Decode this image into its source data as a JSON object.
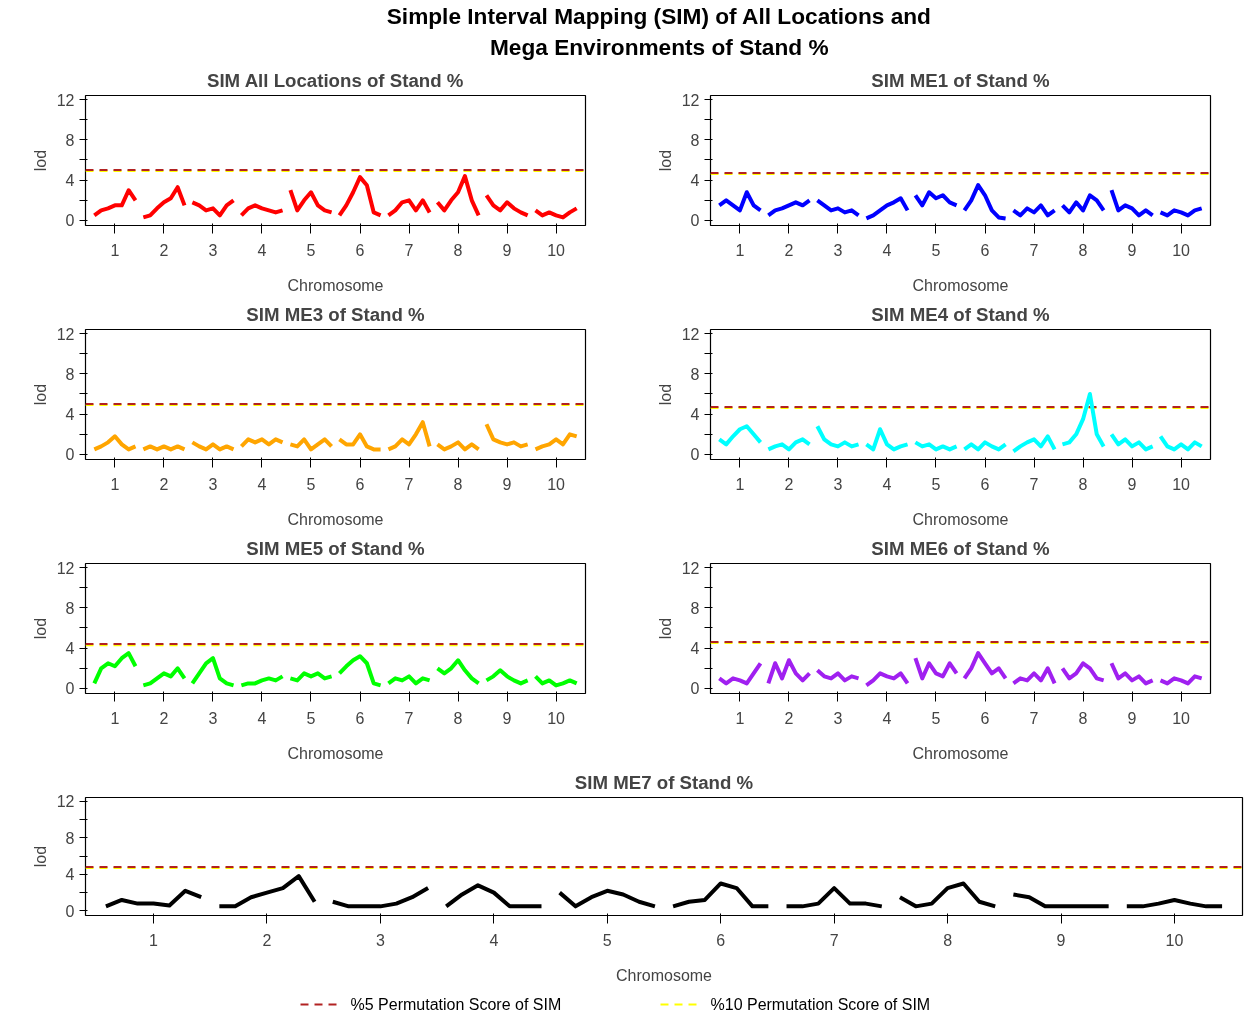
{
  "chart_data": [
    {
      "type": "other",
      "title": "Simple Interval Mapping (SIM) of All Locations and\nMega Environments of Stand %"
    },
    {
      "type": "line",
      "title": "SIM All Locations of Stand %",
      "xlabel": "Chromosome",
      "ylabel": "lod",
      "x": [
        0.58,
        0.72,
        0.86,
        1,
        1.14,
        1.28,
        1.42,
        1.5,
        1.58,
        1.72,
        1.86,
        2,
        2.14,
        2.28,
        2.42,
        2.5,
        2.58,
        2.72,
        2.86,
        3,
        3.14,
        3.28,
        3.42,
        3.5,
        3.58,
        3.72,
        3.86,
        4,
        4.14,
        4.28,
        4.42,
        4.5,
        4.58,
        4.72,
        4.86,
        5,
        5.14,
        5.28,
        5.42,
        5.5,
        5.58,
        5.72,
        5.86,
        6,
        6.14,
        6.28,
        6.42,
        6.5,
        6.58,
        6.72,
        6.86,
        7,
        7.14,
        7.28,
        7.42,
        7.5,
        7.58,
        7.72,
        7.86,
        8,
        8.14,
        8.28,
        8.42,
        8.5,
        8.58,
        8.72,
        8.86,
        9,
        9.14,
        9.28,
        9.42,
        9.5,
        9.58,
        9.72,
        9.86,
        10,
        10.14,
        10.28,
        10.42
      ],
      "series": [
        {
          "color": "#ff0000",
          "values": [
            0.5,
            1.0,
            1.2,
            1.5,
            1.5,
            3.0,
            2.0,
            null,
            0.3,
            0.5,
            1.2,
            1.8,
            2.2,
            3.3,
            1.5,
            null,
            1.8,
            1.5,
            1.0,
            1.2,
            0.5,
            1.5,
            2.0,
            null,
            0.5,
            1.2,
            1.5,
            1.2,
            1.0,
            0.8,
            1.0,
            null,
            3.0,
            1.0,
            2.0,
            2.8,
            1.5,
            1.0,
            0.8,
            null,
            0.5,
            1.5,
            2.8,
            4.3,
            3.5,
            0.8,
            0.5,
            null,
            0.5,
            1.0,
            1.8,
            2.0,
            1.0,
            2.0,
            0.8,
            null,
            1.8,
            1.0,
            2.0,
            2.8,
            4.4,
            2.0,
            0.5,
            null,
            2.5,
            1.5,
            1.0,
            1.8,
            1.2,
            0.8,
            0.5,
            null,
            1.0,
            0.5,
            0.8,
            0.5,
            0.3,
            0.8,
            1.2
          ]
        }
      ],
      "xlim": [
        0.4,
        10.6
      ],
      "ylim": [
        -0.5,
        12.4
      ],
      "xticks": [
        1,
        2,
        3,
        4,
        5,
        6,
        7,
        8,
        9,
        10
      ],
      "yticks": [
        0,
        {
          "value": 2,
          "label": null
        },
        4,
        {
          "value": 6,
          "label": null
        },
        8,
        {
          "value": 10,
          "label": null
        },
        12
      ],
      "ref_lines": [
        {
          "axis": "y",
          "value": 4.9,
          "color": "#ffff00",
          "line_style": "dashed"
        },
        {
          "axis": "y",
          "value": 5.0,
          "color": "#b22222",
          "line_style": "dashed"
        }
      ]
    },
    {
      "type": "line",
      "title": "SIM ME1 of Stand %",
      "xlabel": "Chromosome",
      "ylabel": "lod",
      "x": [
        0.58,
        0.72,
        0.86,
        1,
        1.14,
        1.28,
        1.42,
        1.5,
        1.58,
        1.72,
        1.86,
        2,
        2.14,
        2.28,
        2.42,
        2.5,
        2.58,
        2.72,
        2.86,
        3,
        3.14,
        3.28,
        3.42,
        3.5,
        3.58,
        3.72,
        3.86,
        4,
        4.14,
        4.28,
        4.42,
        4.5,
        4.58,
        4.72,
        4.86,
        5,
        5.14,
        5.28,
        5.42,
        5.5,
        5.58,
        5.72,
        5.86,
        6,
        6.14,
        6.28,
        6.42,
        6.5,
        6.58,
        6.72,
        6.86,
        7,
        7.14,
        7.28,
        7.42,
        7.5,
        7.58,
        7.72,
        7.86,
        8,
        8.14,
        8.28,
        8.42,
        8.5,
        8.58,
        8.72,
        8.86,
        9,
        9.14,
        9.28,
        9.42,
        9.5,
        9.58,
        9.72,
        9.86,
        10,
        10.14,
        10.28,
        10.42
      ],
      "series": [
        {
          "color": "#0000ff",
          "values": [
            1.5,
            2.0,
            1.5,
            1.0,
            2.8,
            1.5,
            1.0,
            null,
            0.5,
            1.0,
            1.2,
            1.5,
            1.8,
            1.5,
            2.0,
            null,
            2.0,
            1.5,
            1.0,
            1.2,
            0.8,
            1.0,
            0.5,
            null,
            0.2,
            0.5,
            1.0,
            1.5,
            1.8,
            2.2,
            1.0,
            null,
            2.5,
            1.5,
            2.8,
            2.2,
            2.5,
            1.8,
            1.5,
            null,
            1.0,
            2.0,
            3.5,
            2.5,
            1.0,
            0.3,
            0.2,
            null,
            1.0,
            0.5,
            1.2,
            0.8,
            1.5,
            0.5,
            1.0,
            null,
            1.5,
            0.8,
            1.8,
            1.0,
            2.5,
            2.0,
            1.0,
            null,
            3.0,
            1.0,
            1.5,
            1.2,
            0.5,
            1.0,
            0.5,
            null,
            0.8,
            0.5,
            1.0,
            0.8,
            0.5,
            1.0,
            1.2
          ]
        }
      ],
      "xlim": [
        0.4,
        10.6
      ],
      "ylim": [
        -0.5,
        12.4
      ],
      "xticks": [
        1,
        2,
        3,
        4,
        5,
        6,
        7,
        8,
        9,
        10
      ],
      "yticks": [
        0,
        {
          "value": 2,
          "label": null
        },
        4,
        {
          "value": 6,
          "label": null
        },
        8,
        {
          "value": 10,
          "label": null
        },
        12
      ],
      "ref_lines": [
        {
          "axis": "y",
          "value": 4.6,
          "color": "#ffff00",
          "line_style": "dashed"
        },
        {
          "axis": "y",
          "value": 4.7,
          "color": "#b22222",
          "line_style": "dashed"
        }
      ]
    },
    {
      "type": "line",
      "title": "SIM ME3 of Stand %",
      "xlabel": "Chromosome",
      "ylabel": "lod",
      "x": [
        0.58,
        0.72,
        0.86,
        1,
        1.14,
        1.28,
        1.42,
        1.5,
        1.58,
        1.72,
        1.86,
        2,
        2.14,
        2.28,
        2.42,
        2.5,
        2.58,
        2.72,
        2.86,
        3,
        3.14,
        3.28,
        3.42,
        3.5,
        3.58,
        3.72,
        3.86,
        4,
        4.14,
        4.28,
        4.42,
        4.5,
        4.58,
        4.72,
        4.86,
        5,
        5.14,
        5.28,
        5.42,
        5.5,
        5.58,
        5.72,
        5.86,
        6,
        6.14,
        6.28,
        6.42,
        6.5,
        6.58,
        6.72,
        6.86,
        7,
        7.14,
        7.28,
        7.42,
        7.5,
        7.58,
        7.72,
        7.86,
        8,
        8.14,
        8.28,
        8.42,
        8.5,
        8.58,
        8.72,
        8.86,
        9,
        9.14,
        9.28,
        9.42,
        9.5,
        9.58,
        9.72,
        9.86,
        10,
        10.14,
        10.28,
        10.42
      ],
      "series": [
        {
          "color": "#ffa500",
          "values": [
            0.5,
            0.8,
            1.2,
            1.8,
            1.0,
            0.5,
            0.8,
            null,
            0.5,
            0.8,
            0.5,
            0.8,
            0.5,
            0.8,
            0.5,
            null,
            1.2,
            0.8,
            0.5,
            1.0,
            0.5,
            0.8,
            0.5,
            null,
            0.8,
            1.5,
            1.2,
            1.5,
            1.0,
            1.5,
            1.2,
            null,
            1.0,
            0.8,
            1.5,
            0.5,
            1.0,
            1.5,
            0.8,
            null,
            1.5,
            1.0,
            1.0,
            2.0,
            0.8,
            0.5,
            0.5,
            null,
            0.5,
            0.8,
            1.5,
            1.0,
            2.0,
            3.2,
            0.8,
            null,
            1.0,
            0.5,
            0.8,
            1.2,
            0.5,
            1.0,
            0.5,
            null,
            3.0,
            1.5,
            1.2,
            1.0,
            1.2,
            0.8,
            1.0,
            null,
            0.5,
            0.8,
            1.0,
            1.5,
            1.0,
            2.0,
            1.8
          ]
        }
      ],
      "xlim": [
        0.4,
        10.6
      ],
      "ylim": [
        -0.5,
        12.4
      ],
      "xticks": [
        1,
        2,
        3,
        4,
        5,
        6,
        7,
        8,
        9,
        10
      ],
      "yticks": [
        0,
        {
          "value": 2,
          "label": null
        },
        4,
        {
          "value": 6,
          "label": null
        },
        8,
        {
          "value": 10,
          "label": null
        },
        12
      ],
      "ref_lines": [
        {
          "axis": "y",
          "value": 4.9,
          "color": "#ffff00",
          "line_style": "dashed"
        },
        {
          "axis": "y",
          "value": 5.0,
          "color": "#b22222",
          "line_style": "dashed"
        }
      ]
    },
    {
      "type": "line",
      "title": "SIM ME4 of Stand %",
      "xlabel": "Chromosome",
      "ylabel": "lod",
      "x": [
        0.58,
        0.72,
        0.86,
        1,
        1.14,
        1.28,
        1.42,
        1.5,
        1.58,
        1.72,
        1.86,
        2,
        2.14,
        2.28,
        2.42,
        2.5,
        2.58,
        2.72,
        2.86,
        3,
        3.14,
        3.28,
        3.42,
        3.5,
        3.58,
        3.72,
        3.86,
        4,
        4.14,
        4.28,
        4.42,
        4.5,
        4.58,
        4.72,
        4.86,
        5,
        5.14,
        5.28,
        5.42,
        5.5,
        5.58,
        5.72,
        5.86,
        6,
        6.14,
        6.28,
        6.42,
        6.5,
        6.58,
        6.72,
        6.86,
        7,
        7.14,
        7.28,
        7.42,
        7.5,
        7.58,
        7.72,
        7.86,
        8,
        8.14,
        8.28,
        8.42,
        8.5,
        8.58,
        8.72,
        8.86,
        9,
        9.14,
        9.28,
        9.42,
        9.5,
        9.58,
        9.72,
        9.86,
        10,
        10.14,
        10.28,
        10.42
      ],
      "series": [
        {
          "color": "#00ffff",
          "values": [
            1.5,
            1.0,
            1.8,
            2.5,
            2.8,
            2.0,
            1.2,
            null,
            0.5,
            0.8,
            1.0,
            0.5,
            1.2,
            1.5,
            1.0,
            null,
            2.8,
            1.5,
            1.0,
            0.8,
            1.2,
            0.8,
            1.0,
            null,
            1.0,
            0.5,
            2.5,
            1.0,
            0.5,
            0.8,
            1.0,
            null,
            1.2,
            0.8,
            1.0,
            0.5,
            0.8,
            0.5,
            0.8,
            null,
            0.5,
            1.0,
            0.5,
            1.2,
            0.8,
            0.5,
            1.0,
            null,
            0.3,
            0.8,
            1.2,
            1.5,
            0.8,
            1.8,
            0.5,
            null,
            1.0,
            1.2,
            2.0,
            3.5,
            6.0,
            2.0,
            0.8,
            null,
            2.0,
            1.0,
            1.5,
            0.8,
            1.2,
            0.5,
            0.8,
            null,
            1.8,
            0.8,
            0.5,
            1.0,
            0.5,
            1.2,
            0.8
          ]
        }
      ],
      "xlim": [
        0.4,
        10.6
      ],
      "ylim": [
        -0.5,
        12.4
      ],
      "xticks": [
        1,
        2,
        3,
        4,
        5,
        6,
        7,
        8,
        9,
        10
      ],
      "yticks": [
        0,
        {
          "value": 2,
          "label": null
        },
        4,
        {
          "value": 6,
          "label": null
        },
        8,
        {
          "value": 10,
          "label": null
        },
        12
      ],
      "ref_lines": [
        {
          "axis": "y",
          "value": 4.6,
          "color": "#ffff00",
          "line_style": "dashed"
        },
        {
          "axis": "y",
          "value": 4.7,
          "color": "#b22222",
          "line_style": "dashed"
        }
      ]
    },
    {
      "type": "line",
      "title": "SIM ME5 of Stand %",
      "xlabel": "Chromosome",
      "ylabel": "lod",
      "x": [
        0.58,
        0.72,
        0.86,
        1,
        1.14,
        1.28,
        1.42,
        1.5,
        1.58,
        1.72,
        1.86,
        2,
        2.14,
        2.28,
        2.42,
        2.5,
        2.58,
        2.72,
        2.86,
        3,
        3.14,
        3.28,
        3.42,
        3.5,
        3.58,
        3.72,
        3.86,
        4,
        4.14,
        4.28,
        4.42,
        4.5,
        4.58,
        4.72,
        4.86,
        5,
        5.14,
        5.28,
        5.42,
        5.5,
        5.58,
        5.72,
        5.86,
        6,
        6.14,
        6.28,
        6.42,
        6.5,
        6.58,
        6.72,
        6.86,
        7,
        7.14,
        7.28,
        7.42,
        7.5,
        7.58,
        7.72,
        7.86,
        8,
        8.14,
        8.28,
        8.42,
        8.5,
        8.58,
        8.72,
        8.86,
        9,
        9.14,
        9.28,
        9.42,
        9.5,
        9.58,
        9.72,
        9.86,
        10,
        10.14,
        10.28,
        10.42
      ],
      "series": [
        {
          "color": "#00ff00",
          "values": [
            0.5,
            2.0,
            2.5,
            2.2,
            3.0,
            3.5,
            2.2,
            null,
            0.3,
            0.5,
            1.0,
            1.5,
            1.2,
            2.0,
            1.0,
            null,
            0.5,
            1.5,
            2.5,
            3.0,
            1.0,
            0.5,
            0.3,
            null,
            0.3,
            0.5,
            0.5,
            0.8,
            1.0,
            0.8,
            1.2,
            null,
            1.0,
            0.8,
            1.5,
            1.2,
            1.5,
            1.0,
            1.2,
            null,
            1.5,
            2.2,
            2.8,
            3.2,
            2.5,
            0.5,
            0.3,
            null,
            0.5,
            1.0,
            0.8,
            1.2,
            0.5,
            1.0,
            0.8,
            null,
            2.0,
            1.5,
            2.0,
            2.8,
            1.8,
            1.0,
            0.5,
            null,
            0.8,
            1.2,
            1.8,
            1.2,
            0.8,
            0.5,
            0.8,
            null,
            1.2,
            0.5,
            0.8,
            0.3,
            0.5,
            0.8,
            0.5
          ]
        }
      ],
      "xlim": [
        0.4,
        10.6
      ],
      "ylim": [
        -0.5,
        12.4
      ],
      "xticks": [
        1,
        2,
        3,
        4,
        5,
        6,
        7,
        8,
        9,
        10
      ],
      "yticks": [
        0,
        {
          "value": 2,
          "label": null
        },
        4,
        {
          "value": 6,
          "label": null
        },
        8,
        {
          "value": 10,
          "label": null
        },
        12
      ],
      "ref_lines": [
        {
          "axis": "y",
          "value": 4.3,
          "color": "#ffff00",
          "line_style": "dashed"
        },
        {
          "axis": "y",
          "value": 4.4,
          "color": "#b22222",
          "line_style": "dashed"
        }
      ]
    },
    {
      "type": "line",
      "title": "SIM ME6 of Stand %",
      "xlabel": "Chromosome",
      "ylabel": "lod",
      "x": [
        0.58,
        0.72,
        0.86,
        1,
        1.14,
        1.28,
        1.42,
        1.5,
        1.58,
        1.72,
        1.86,
        2,
        2.14,
        2.28,
        2.42,
        2.5,
        2.58,
        2.72,
        2.86,
        3,
        3.14,
        3.28,
        3.42,
        3.5,
        3.58,
        3.72,
        3.86,
        4,
        4.14,
        4.28,
        4.42,
        4.5,
        4.58,
        4.72,
        4.86,
        5,
        5.14,
        5.28,
        5.42,
        5.5,
        5.58,
        5.72,
        5.86,
        6,
        6.14,
        6.28,
        6.42,
        6.5,
        6.58,
        6.72,
        6.86,
        7,
        7.14,
        7.28,
        7.42,
        7.5,
        7.58,
        7.72,
        7.86,
        8,
        8.14,
        8.28,
        8.42,
        8.5,
        8.58,
        8.72,
        8.86,
        9,
        9.14,
        9.28,
        9.42,
        9.5,
        9.58,
        9.72,
        9.86,
        10,
        10.14,
        10.28,
        10.42
      ],
      "series": [
        {
          "color": "#a020f0",
          "values": [
            1.0,
            0.5,
            1.0,
            0.8,
            0.5,
            1.5,
            2.5,
            null,
            0.5,
            2.5,
            1.0,
            2.8,
            1.5,
            0.8,
            1.5,
            null,
            1.8,
            1.2,
            1.0,
            1.5,
            0.8,
            1.2,
            1.0,
            null,
            0.3,
            0.8,
            1.5,
            1.2,
            1.0,
            1.5,
            0.5,
            null,
            3.0,
            1.0,
            2.5,
            1.5,
            1.2,
            2.5,
            1.5,
            null,
            1.0,
            2.0,
            3.5,
            2.5,
            1.5,
            2.0,
            1.0,
            null,
            0.5,
            1.0,
            0.8,
            1.5,
            0.8,
            2.0,
            0.5,
            null,
            2.0,
            1.0,
            1.5,
            2.5,
            2.0,
            1.0,
            0.8,
            null,
            2.5,
            1.0,
            1.5,
            0.8,
            1.2,
            0.5,
            0.8,
            null,
            0.8,
            0.5,
            1.0,
            0.8,
            0.5,
            1.2,
            1.0
          ]
        }
      ],
      "xlim": [
        0.4,
        10.6
      ],
      "ylim": [
        -0.5,
        12.4
      ],
      "xticks": [
        1,
        2,
        3,
        4,
        5,
        6,
        7,
        8,
        9,
        10
      ],
      "yticks": [
        0,
        {
          "value": 2,
          "label": null
        },
        4,
        {
          "value": 6,
          "label": null
        },
        8,
        {
          "value": 10,
          "label": null
        },
        12
      ],
      "ref_lines": [
        {
          "axis": "y",
          "value": 4.5,
          "color": "#ffff00",
          "line_style": "dashed"
        },
        {
          "axis": "y",
          "value": 4.6,
          "color": "#b22222",
          "line_style": "dashed"
        }
      ]
    },
    {
      "type": "line",
      "title": "SIM ME7 of Stand %",
      "xlabel": "Chromosome",
      "ylabel": "lod",
      "x": [
        0.58,
        0.72,
        0.86,
        1,
        1.14,
        1.28,
        1.42,
        1.5,
        1.58,
        1.72,
        1.86,
        2,
        2.14,
        2.28,
        2.42,
        2.5,
        2.58,
        2.72,
        2.86,
        3,
        3.14,
        3.28,
        3.42,
        3.5,
        3.58,
        3.72,
        3.86,
        4,
        4.14,
        4.28,
        4.42,
        4.5,
        4.58,
        4.72,
        4.86,
        5,
        5.14,
        5.28,
        5.42,
        5.5,
        5.58,
        5.72,
        5.86,
        6,
        6.14,
        6.28,
        6.42,
        6.5,
        6.58,
        6.72,
        6.86,
        7,
        7.14,
        7.28,
        7.42,
        7.5,
        7.58,
        7.72,
        7.86,
        8,
        8.14,
        8.28,
        8.42,
        8.5,
        8.58,
        8.72,
        8.86,
        9,
        9.14,
        9.28,
        9.42,
        9.5,
        9.58,
        9.72,
        9.86,
        10,
        10.14,
        10.28,
        10.42
      ],
      "series": [
        {
          "color": "#000000",
          "values": [
            0.5,
            1.2,
            0.8,
            0.8,
            0.6,
            2.2,
            1.5,
            null,
            0.5,
            0.5,
            1.5,
            2.0,
            2.5,
            3.8,
            1.0,
            null,
            1.0,
            0.5,
            0.5,
            0.5,
            0.8,
            1.5,
            2.5,
            null,
            0.5,
            1.8,
            2.8,
            2.0,
            0.5,
            0.5,
            0.5,
            null,
            2.0,
            0.5,
            1.5,
            2.2,
            1.8,
            1.0,
            0.5,
            null,
            0.5,
            1.0,
            1.2,
            3.0,
            2.5,
            0.5,
            0.5,
            null,
            0.5,
            0.5,
            0.8,
            2.5,
            0.8,
            0.8,
            0.5,
            null,
            1.5,
            0.5,
            0.8,
            2.5,
            3.0,
            1.0,
            0.5,
            null,
            1.8,
            1.5,
            0.5,
            0.5,
            0.5,
            0.5,
            0.5,
            null,
            0.5,
            0.5,
            0.8,
            1.2,
            0.8,
            0.5,
            0.5
          ]
        }
      ],
      "xlim": [
        0.4,
        10.6
      ],
      "ylim": [
        -0.5,
        12.4
      ],
      "xticks": [
        1,
        2,
        3,
        4,
        5,
        6,
        7,
        8,
        9,
        10
      ],
      "yticks": [
        0,
        {
          "value": 2,
          "label": null
        },
        4,
        {
          "value": 6,
          "label": null
        },
        8,
        {
          "value": 10,
          "label": null
        },
        12
      ],
      "ref_lines": [
        {
          "axis": "y",
          "value": 4.7,
          "color": "#ffff00",
          "line_style": "dashed",
          "label": "%10 Permutation Score of SIM"
        },
        {
          "axis": "y",
          "value": 4.8,
          "color": "#b22222",
          "line_style": "dashed",
          "label": "%5 Permutation Score of SIM"
        }
      ],
      "legend": "bottom"
    }
  ]
}
